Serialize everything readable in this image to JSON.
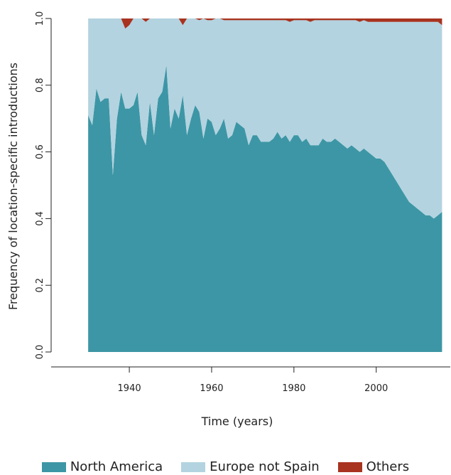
{
  "chart_data": {
    "type": "area",
    "stacked": true,
    "xlabel": "Time (years)",
    "ylabel": "Frequency of location-specific introductions",
    "xlim": [
      1921,
      2018
    ],
    "ylim": [
      0,
      1
    ],
    "x_ticks": [
      "1940",
      "1960",
      "1980",
      "2000"
    ],
    "y_ticks": [
      "0.0",
      "0.2",
      "0.4",
      "0.6",
      "0.8",
      "1.0"
    ],
    "grid": false,
    "legend_position": "bottom",
    "x": [
      1930,
      1931,
      1932,
      1933,
      1934,
      1935,
      1936,
      1937,
      1938,
      1939,
      1940,
      1941,
      1942,
      1943,
      1944,
      1945,
      1946,
      1947,
      1948,
      1949,
      1950,
      1951,
      1952,
      1953,
      1954,
      1955,
      1956,
      1957,
      1958,
      1959,
      1960,
      1961,
      1962,
      1963,
      1964,
      1965,
      1966,
      1967,
      1968,
      1969,
      1970,
      1971,
      1972,
      1973,
      1974,
      1975,
      1976,
      1977,
      1978,
      1979,
      1980,
      1981,
      1982,
      1983,
      1984,
      1985,
      1986,
      1987,
      1988,
      1989,
      1990,
      1991,
      1992,
      1993,
      1994,
      1995,
      1996,
      1997,
      1998,
      1999,
      2000,
      2001,
      2002,
      2003,
      2004,
      2005,
      2006,
      2007,
      2008,
      2009,
      2010,
      2011,
      2012,
      2013,
      2014,
      2015,
      2016
    ],
    "series": [
      {
        "name": "North America",
        "color": "#3d96a5",
        "values": [
          0.71,
          0.68,
          0.79,
          0.75,
          0.76,
          0.76,
          0.53,
          0.7,
          0.78,
          0.73,
          0.73,
          0.74,
          0.78,
          0.65,
          0.62,
          0.75,
          0.65,
          0.76,
          0.78,
          0.86,
          0.67,
          0.73,
          0.7,
          0.77,
          0.65,
          0.7,
          0.74,
          0.72,
          0.64,
          0.7,
          0.69,
          0.65,
          0.67,
          0.7,
          0.64,
          0.65,
          0.69,
          0.68,
          0.67,
          0.62,
          0.65,
          0.65,
          0.63,
          0.63,
          0.63,
          0.64,
          0.66,
          0.64,
          0.65,
          0.63,
          0.65,
          0.65,
          0.63,
          0.64,
          0.62,
          0.62,
          0.62,
          0.64,
          0.63,
          0.63,
          0.64,
          0.63,
          0.62,
          0.61,
          0.62,
          0.61,
          0.6,
          0.61,
          0.6,
          0.59,
          0.58,
          0.58,
          0.57,
          0.55,
          0.53,
          0.51,
          0.49,
          0.47,
          0.45,
          0.44,
          0.43,
          0.42,
          0.41,
          0.41,
          0.4,
          0.41,
          0.42
        ]
      },
      {
        "name": "Europe not Spain",
        "color": "#b3d3e0",
        "values": [
          0.29,
          0.32,
          0.21,
          0.25,
          0.24,
          0.24,
          0.47,
          0.3,
          0.22,
          0.24,
          0.25,
          0.26,
          0.22,
          0.35,
          0.37,
          0.25,
          0.35,
          0.24,
          0.22,
          0.14,
          0.33,
          0.27,
          0.3,
          0.21,
          0.35,
          0.3,
          0.26,
          0.275,
          0.36,
          0.295,
          0.305,
          0.35,
          0.33,
          0.295,
          0.355,
          0.345,
          0.305,
          0.315,
          0.325,
          0.375,
          0.345,
          0.345,
          0.365,
          0.365,
          0.365,
          0.355,
          0.335,
          0.355,
          0.345,
          0.36,
          0.345,
          0.345,
          0.365,
          0.355,
          0.37,
          0.375,
          0.375,
          0.355,
          0.365,
          0.365,
          0.355,
          0.365,
          0.375,
          0.385,
          0.375,
          0.385,
          0.39,
          0.385,
          0.39,
          0.4,
          0.41,
          0.41,
          0.42,
          0.44,
          0.46,
          0.48,
          0.5,
          0.52,
          0.54,
          0.55,
          0.56,
          0.57,
          0.58,
          0.58,
          0.59,
          0.58,
          0.56
        ]
      },
      {
        "name": "Others",
        "color": "#a8331f",
        "values": [
          0,
          0,
          0,
          0,
          0,
          0,
          0,
          0,
          0,
          0.03,
          0.02,
          0,
          0,
          0,
          0.01,
          0,
          0,
          0,
          0,
          0,
          0,
          0,
          0,
          0.02,
          0,
          0,
          0,
          0.005,
          0,
          0.005,
          0.005,
          0,
          0,
          0.005,
          0.005,
          0.005,
          0.005,
          0.005,
          0.005,
          0.005,
          0.005,
          0.005,
          0.005,
          0.005,
          0.005,
          0.005,
          0.005,
          0.005,
          0.005,
          0.01,
          0.005,
          0.005,
          0.005,
          0.005,
          0.01,
          0.005,
          0.005,
          0.005,
          0.005,
          0.005,
          0.005,
          0.005,
          0.005,
          0.005,
          0.005,
          0.005,
          0.01,
          0.005,
          0.01,
          0.01,
          0.01,
          0.01,
          0.01,
          0.01,
          0.01,
          0.01,
          0.01,
          0.01,
          0.01,
          0.01,
          0.01,
          0.01,
          0.01,
          0.01,
          0.01,
          0.01,
          0.02
        ]
      }
    ]
  }
}
